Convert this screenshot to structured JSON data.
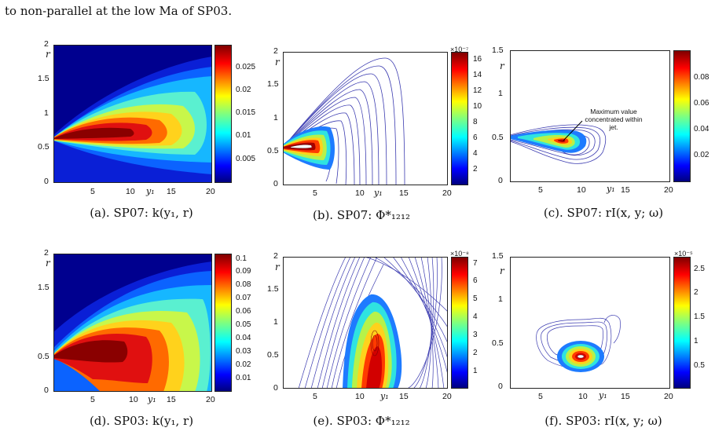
{
  "header_text": "to non-parallel at the low Ma of SP03.",
  "panels": {
    "a": {
      "caption": "(a).  SP07: k(y₁, r)",
      "x_ticks": [
        "5",
        "10",
        "15",
        "20"
      ],
      "y_ticks": [
        "2",
        "1.5",
        "1",
        "0.5",
        "0"
      ],
      "y_label": "r",
      "x_label": "y₁",
      "colorbar_ticks": [
        "0.025",
        "0.02",
        "0.015",
        "0.01",
        "0.005"
      ],
      "colorbar_exponent": ""
    },
    "b": {
      "caption": "(b).  SP07: Φ*₁₂₁₂",
      "x_ticks": [
        "5",
        "10",
        "15",
        "20"
      ],
      "y_ticks": [
        "2",
        "1.5",
        "1",
        "0.5",
        "0"
      ],
      "y_label": "r",
      "x_label": "y₁",
      "colorbar_ticks": [
        "16",
        "14",
        "12",
        "10",
        "8",
        "6",
        "4",
        "2"
      ],
      "colorbar_exponent": "×10⁻⁷"
    },
    "c": {
      "caption": "(c).  SP07: rI(x, y; ω)",
      "x_ticks": [
        "5",
        "10",
        "15",
        "20"
      ],
      "y_ticks": [
        "1.5",
        "1",
        "0.5",
        "0"
      ],
      "y_label": "r",
      "x_label": "y₁",
      "colorbar_ticks": [
        "0.08",
        "0.06",
        "0.04",
        "0.02"
      ],
      "colorbar_exponent": "",
      "annotation": "Maximum value concentrated within jet."
    },
    "d": {
      "caption": "(d).  SP03: k(y₁, r)",
      "x_ticks": [
        "5",
        "10",
        "15",
        "20"
      ],
      "y_ticks": [
        "2",
        "1.5",
        "0.5",
        "0"
      ],
      "y_label": "r",
      "x_label": "y₁",
      "colorbar_ticks": [
        "0.1",
        "0.09",
        "0.08",
        "0.07",
        "0.06",
        "0.05",
        "0.04",
        "0.03",
        "0.02",
        "0.01"
      ],
      "colorbar_exponent": ""
    },
    "e": {
      "caption": "(e).  SP03: Φ*₁₂₁₂",
      "x_ticks": [
        "5",
        "10",
        "15",
        "20"
      ],
      "y_ticks": [
        "2",
        "1.5",
        "1",
        "0.5",
        "0"
      ],
      "y_label": "r",
      "x_label": "y₁",
      "colorbar_ticks": [
        "7",
        "6",
        "5",
        "4",
        "3",
        "2",
        "1"
      ],
      "colorbar_exponent": "×10⁻⁸"
    },
    "f": {
      "caption": "(f).  SP03: rI(x, y; ω)",
      "x_ticks": [
        "5",
        "10",
        "15",
        "20"
      ],
      "y_ticks": [
        "1.5",
        "1",
        "0.5",
        "0"
      ],
      "y_label": "r",
      "x_label": "y₁",
      "colorbar_ticks": [
        "2.5",
        "2",
        "1.5",
        "1",
        "0.5"
      ],
      "colorbar_exponent": "×10⁻⁵"
    }
  },
  "colors": {
    "jet_dark_red": "#7f0000",
    "jet_red": "#ff0000",
    "jet_yellow": "#ffff00",
    "jet_cyan": "#00ffff",
    "jet_blue": "#0000ff",
    "jet_dark_blue": "#00007f",
    "contour_line": "#3b3bb0"
  }
}
